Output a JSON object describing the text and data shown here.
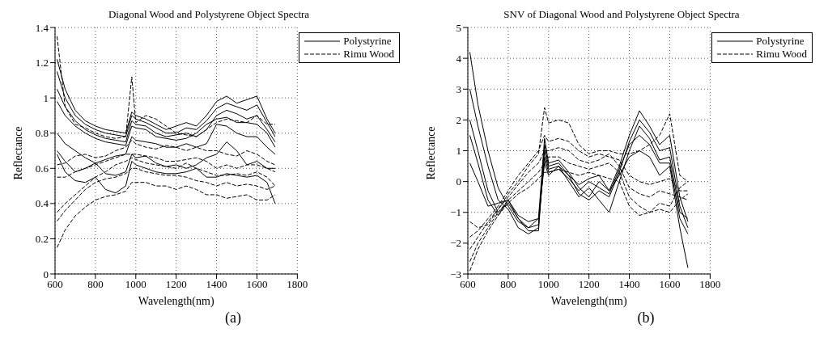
{
  "chart_data": [
    {
      "type": "line",
      "title": "Diagonal Wood and Polystyrene Object Spectra",
      "xlabel": "Wavelength(nm)",
      "ylabel": "Reflectance",
      "annotations": [
        "(a)"
      ],
      "xlim": [
        600,
        1800
      ],
      "xticks": [
        600,
        800,
        1000,
        1200,
        1400,
        1600,
        1800
      ],
      "ylim": [
        0,
        1.4
      ],
      "yticks": [
        0,
        0.2,
        0.4,
        0.6,
        0.8,
        1,
        1.2,
        1.4
      ],
      "grid": true,
      "legend": "top right",
      "x": [
        610,
        650,
        700,
        750,
        800,
        850,
        900,
        950,
        980,
        1000,
        1050,
        1100,
        1150,
        1200,
        1250,
        1300,
        1350,
        1400,
        1450,
        1500,
        1550,
        1600,
        1650,
        1690
      ],
      "series": [
        {
          "name": "Polystyrine",
          "color": "#000000",
          "line_style": "solid",
          "values": [
            1.22,
            1.05,
            0.93,
            0.87,
            0.84,
            0.82,
            0.81,
            0.8,
            0.92,
            0.9,
            0.88,
            0.85,
            0.82,
            0.84,
            0.86,
            0.84,
            0.9,
            0.98,
            1.01,
            0.97,
            0.99,
            1.01,
            0.88,
            0.8
          ]
        },
        {
          "color": "#000000",
          "line_style": "solid",
          "values": [
            1.15,
            1.0,
            0.9,
            0.85,
            0.82,
            0.8,
            0.79,
            0.78,
            0.9,
            0.88,
            0.86,
            0.83,
            0.8,
            0.8,
            0.83,
            0.82,
            0.87,
            0.94,
            0.97,
            0.95,
            0.93,
            0.96,
            0.86,
            0.78
          ]
        },
        {
          "color": "#000000",
          "line_style": "solid",
          "values": [
            1.05,
            0.95,
            0.87,
            0.82,
            0.79,
            0.77,
            0.76,
            0.75,
            0.87,
            0.85,
            0.84,
            0.8,
            0.78,
            0.79,
            0.8,
            0.78,
            0.82,
            0.9,
            0.93,
            0.91,
            0.88,
            0.9,
            0.82,
            0.75
          ]
        },
        {
          "color": "#000000",
          "line_style": "solid",
          "values": [
            0.98,
            0.9,
            0.84,
            0.8,
            0.77,
            0.75,
            0.74,
            0.73,
            0.84,
            0.83,
            0.82,
            0.78,
            0.77,
            0.76,
            0.77,
            0.8,
            0.85,
            0.88,
            0.89,
            0.86,
            0.86,
            0.85,
            0.8,
            0.72
          ]
        },
        {
          "color": "#000000",
          "line_style": "solid",
          "values": [
            0.8,
            0.74,
            0.7,
            0.66,
            0.63,
            0.65,
            0.67,
            0.68,
            0.78,
            0.76,
            0.75,
            0.74,
            0.72,
            0.72,
            0.74,
            0.72,
            0.74,
            0.85,
            0.84,
            0.8,
            0.78,
            0.78,
            0.72,
            0.68
          ]
        },
        {
          "color": "#000000",
          "line_style": "solid",
          "values": [
            0.7,
            0.64,
            0.58,
            0.6,
            0.63,
            0.57,
            0.56,
            0.58,
            0.68,
            0.66,
            0.67,
            0.63,
            0.61,
            0.62,
            0.6,
            0.62,
            0.66,
            0.68,
            0.75,
            0.7,
            0.62,
            0.64,
            0.6,
            0.6
          ]
        },
        {
          "color": "#000000",
          "line_style": "solid",
          "values": [
            0.68,
            0.58,
            0.53,
            0.52,
            0.55,
            0.48,
            0.46,
            0.5,
            0.64,
            0.62,
            0.6,
            0.58,
            0.57,
            0.57,
            0.58,
            0.6,
            0.55,
            0.55,
            0.57,
            0.56,
            0.55,
            0.56,
            0.52,
            0.4
          ]
        },
        {
          "name": "Rimu Wood",
          "color": "#000000",
          "line_style": "dashed",
          "values": [
            1.35,
            0.95,
            0.85,
            0.83,
            0.8,
            0.78,
            0.77,
            0.78,
            1.12,
            0.86,
            0.9,
            0.88,
            0.84,
            0.8,
            0.79,
            0.78,
            0.82,
            0.86,
            0.88,
            0.87,
            0.86,
            0.9,
            0.85,
            0.85
          ]
        },
        {
          "color": "#000000",
          "line_style": "dashed",
          "values": [
            0.62,
            0.63,
            0.67,
            0.68,
            0.66,
            0.67,
            0.7,
            0.72,
            0.76,
            0.74,
            0.72,
            0.71,
            0.73,
            0.72,
            0.7,
            0.72,
            0.7,
            0.7,
            0.68,
            0.67,
            0.7,
            0.68,
            0.64,
            0.62
          ]
        },
        {
          "color": "#000000",
          "line_style": "dashed",
          "values": [
            0.55,
            0.55,
            0.58,
            0.6,
            0.62,
            0.64,
            0.66,
            0.68,
            0.68,
            0.68,
            0.67,
            0.66,
            0.64,
            0.64,
            0.65,
            0.66,
            0.64,
            0.6,
            0.62,
            0.6,
            0.62,
            0.62,
            0.6,
            0.58
          ]
        },
        {
          "color": "#000000",
          "line_style": "dashed",
          "values": [
            0.35,
            0.4,
            0.45,
            0.5,
            0.55,
            0.58,
            0.62,
            0.64,
            0.66,
            0.65,
            0.63,
            0.62,
            0.61,
            0.6,
            0.63,
            0.6,
            0.58,
            0.56,
            0.56,
            0.57,
            0.56,
            0.58,
            0.55,
            0.5
          ]
        },
        {
          "color": "#000000",
          "line_style": "dashed",
          "values": [
            0.3,
            0.36,
            0.42,
            0.48,
            0.52,
            0.54,
            0.55,
            0.57,
            0.6,
            0.6,
            0.58,
            0.57,
            0.56,
            0.56,
            0.55,
            0.53,
            0.52,
            0.5,
            0.52,
            0.5,
            0.51,
            0.5,
            0.48,
            0.5
          ]
        },
        {
          "color": "#000000",
          "line_style": "dashed",
          "values": [
            0.15,
            0.25,
            0.33,
            0.38,
            0.42,
            0.44,
            0.45,
            0.47,
            0.52,
            0.52,
            0.52,
            0.5,
            0.5,
            0.48,
            0.5,
            0.48,
            0.45,
            0.45,
            0.43,
            0.44,
            0.45,
            0.42,
            0.42,
            0.45
          ]
        }
      ]
    },
    {
      "type": "line",
      "title": "SNV of Diagonal Wood and Polystyrene Object Spectra",
      "xlabel": "Wavelength(nm)",
      "ylabel": "Reflectance",
      "annotations": [
        "(b)"
      ],
      "xlim": [
        600,
        1800
      ],
      "xticks": [
        600,
        800,
        1000,
        1200,
        1400,
        1600,
        1800
      ],
      "ylim": [
        -3,
        5
      ],
      "yticks": [
        {
          "value": -3,
          "label": "−3"
        },
        {
          "value": -2,
          "label": "−2"
        },
        {
          "value": -1,
          "label": "−1"
        },
        0,
        1,
        2,
        3,
        4,
        5
      ],
      "grid": true,
      "legend": "top right",
      "x": [
        610,
        650,
        700,
        750,
        800,
        850,
        900,
        950,
        980,
        1000,
        1050,
        1100,
        1150,
        1200,
        1250,
        1300,
        1350,
        1400,
        1450,
        1500,
        1550,
        1600,
        1650,
        1690
      ],
      "series": [
        {
          "name": "Polystyrine",
          "color": "#000000",
          "line_style": "solid",
          "values": [
            4.2,
            2.5,
            1.0,
            -0.2,
            -0.8,
            -1.3,
            -1.5,
            -1.2,
            1.4,
            0.6,
            0.7,
            0.3,
            -0.2,
            -0.5,
            0.0,
            -0.3,
            0.5,
            1.5,
            2.3,
            1.8,
            1.2,
            1.5,
            -0.5,
            -1.3
          ]
        },
        {
          "color": "#000000",
          "line_style": "solid",
          "values": [
            3.0,
            1.8,
            0.5,
            -0.6,
            -0.9,
            -1.5,
            -1.7,
            -1.5,
            1.2,
            0.5,
            0.6,
            0.2,
            -0.4,
            -0.6,
            -0.3,
            -0.5,
            0.3,
            1.3,
            2.0,
            1.6,
            1.0,
            1.1,
            -0.8,
            -1.5
          ]
        },
        {
          "color": "#000000",
          "line_style": "solid",
          "values": [
            2.0,
            1.0,
            -0.3,
            -1.0,
            -0.7,
            -1.2,
            -1.6,
            -1.6,
            1.0,
            0.4,
            0.5,
            0.0,
            -0.5,
            -0.2,
            -0.6,
            -1.0,
            0.0,
            1.0,
            1.8,
            1.4,
            0.7,
            0.8,
            -1.0,
            -1.2
          ]
        },
        {
          "color": "#000000",
          "line_style": "solid",
          "values": [
            1.5,
            0.6,
            -0.6,
            -1.1,
            -0.6,
            -1.2,
            -1.5,
            -1.4,
            0.8,
            0.3,
            0.4,
            0.1,
            -0.3,
            0.0,
            -0.2,
            -0.4,
            0.4,
            1.2,
            1.5,
            1.2,
            0.6,
            0.6,
            -1.2,
            -1.7
          ]
        },
        {
          "color": "#000000",
          "line_style": "solid",
          "values": [
            0.6,
            0.0,
            -0.8,
            -0.7,
            -0.6,
            -1.1,
            -1.3,
            -1.2,
            0.6,
            0.2,
            0.5,
            0.2,
            -0.1,
            0.1,
            0.2,
            -0.3,
            0.2,
            0.8,
            1.0,
            0.8,
            0.2,
            0.5,
            -1.5,
            -2.8
          ]
        },
        {
          "name": "Rimu Wood",
          "color": "#000000",
          "line_style": "dashed",
          "values": [
            -1.3,
            -1.5,
            -1.4,
            -0.9,
            -0.4,
            0.0,
            0.5,
            0.9,
            2.4,
            1.9,
            2.0,
            1.9,
            1.2,
            0.9,
            1.0,
            1.0,
            0.9,
            0.9,
            1.0,
            1.2,
            1.5,
            2.2,
            0.2,
            0.0
          ]
        },
        {
          "color": "#000000",
          "line_style": "dashed",
          "values": [
            -1.8,
            -1.6,
            -1.2,
            -0.8,
            -0.3,
            0.2,
            0.6,
            1.0,
            1.5,
            1.3,
            1.4,
            1.3,
            1.0,
            0.8,
            0.9,
            0.8,
            0.7,
            0.2,
            0.0,
            -0.1,
            0.0,
            0.1,
            -0.3,
            -0.3
          ]
        },
        {
          "color": "#000000",
          "line_style": "dashed",
          "values": [
            -2.2,
            -1.8,
            -1.3,
            -0.9,
            -0.5,
            -0.1,
            0.3,
            0.6,
            1.0,
            1.0,
            1.1,
            1.0,
            0.7,
            0.6,
            0.7,
            0.9,
            0.5,
            -0.2,
            -0.4,
            -0.5,
            -0.3,
            -0.4,
            -0.5,
            -0.6
          ]
        },
        {
          "color": "#000000",
          "line_style": "dashed",
          "values": [
            -2.6,
            -2.0,
            -1.5,
            -1.0,
            -0.6,
            -0.3,
            0.0,
            0.3,
            0.6,
            0.8,
            0.8,
            0.6,
            0.5,
            0.4,
            0.5,
            0.6,
            0.3,
            -0.5,
            -0.8,
            -1.0,
            -0.7,
            -0.8,
            -0.2,
            0.0
          ]
        },
        {
          "color": "#000000",
          "line_style": "dashed",
          "values": [
            -2.9,
            -2.2,
            -1.6,
            -1.1,
            -0.7,
            -0.4,
            -0.2,
            0.1,
            0.3,
            0.3,
            0.4,
            0.3,
            0.2,
            0.3,
            0.2,
            0.1,
            0.0,
            -0.8,
            -1.1,
            -1.0,
            -0.9,
            -1.0,
            -0.6,
            -0.4
          ]
        }
      ]
    }
  ]
}
